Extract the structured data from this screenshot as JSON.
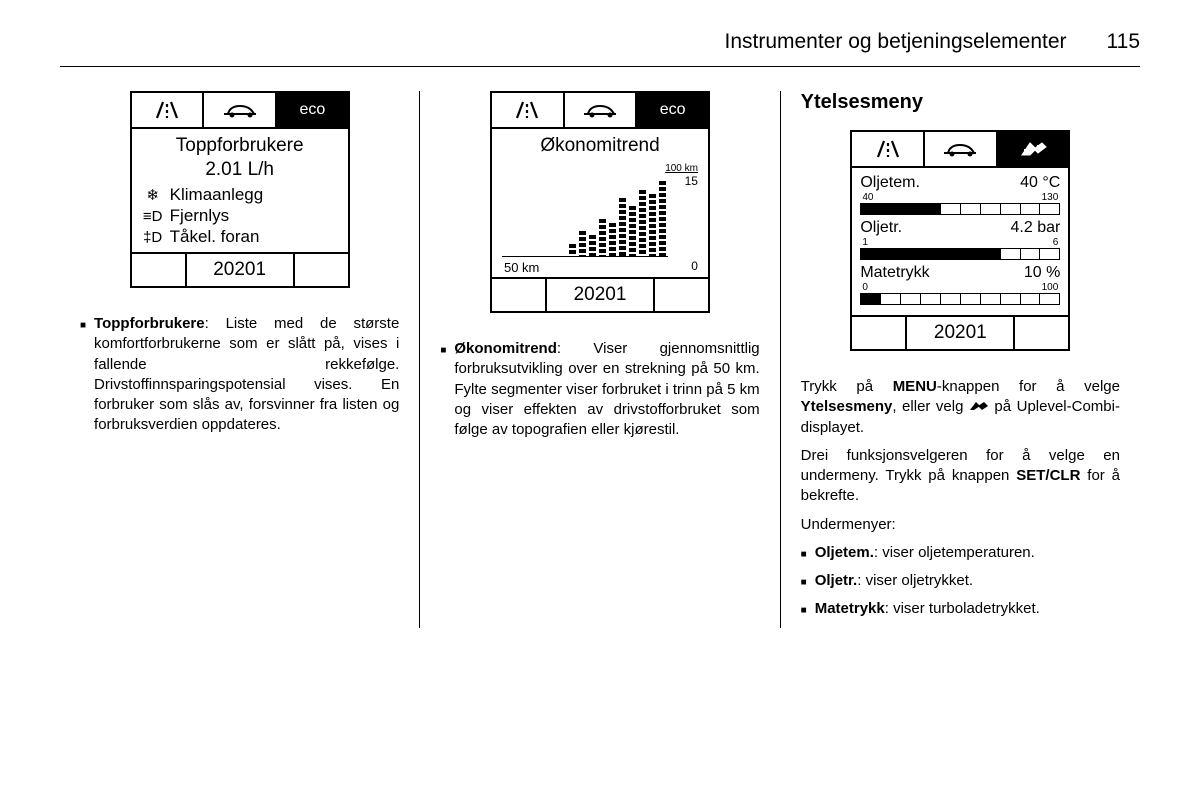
{
  "header": {
    "title": "Instrumenter og betjeningselementer",
    "page": "115"
  },
  "col1": {
    "display": {
      "tabs": {
        "eco_label": "eco"
      },
      "title": "Toppforbrukere",
      "value": "2.01 L/h",
      "consumers": [
        {
          "icon": "❄",
          "label": "Klimaanlegg"
        },
        {
          "icon": "≡D",
          "label": "Fjernlys"
        },
        {
          "icon": "‡D",
          "label": "Tåkel. foran"
        }
      ],
      "footer_value": "20201"
    },
    "bullet_label": "Toppforbrukere",
    "bullet_text": ": Liste med de største komfortforbrukerne som er slått på, vises i fallende rekkefølge. Drivstoffinnsparingspotensial vises. En forbruker som slås av, forsvinner fra listen og forbruksverdien oppdateres."
  },
  "col2": {
    "display": {
      "tabs": {
        "eco_label": "eco"
      },
      "title": "Økonomitrend",
      "chart": {
        "top_label": "100 km",
        "right_top": "15",
        "right_bottom": "0",
        "left_bottom": "50 km",
        "bar_heights_pct": [
          15,
          30,
          25,
          45,
          40,
          70,
          60,
          80,
          75,
          90
        ]
      },
      "footer_value": "20201"
    },
    "bullet_label": "Økonomitrend",
    "bullet_text": ": Viser gjennomsnittlig forbruksutvikling over en strekning på 50 km. Fylte segmenter viser forbruket i trinn på 5 km og viser effekten av drivstofforbruket som følge av topografien eller kjørestil."
  },
  "col3": {
    "section_title": "Ytelsesmeny",
    "display": {
      "rows": [
        {
          "label": "Oljetem.",
          "value": "40 °C",
          "scale_lo": "40",
          "scale_hi": "130",
          "filled": 4,
          "total": 10
        },
        {
          "label": "Oljetr.",
          "value": "4.2 bar",
          "scale_lo": "1",
          "scale_hi": "6",
          "filled": 7,
          "total": 10
        },
        {
          "label": "Matetrykk",
          "value": "10 %",
          "scale_lo": "0",
          "scale_hi": "100",
          "filled": 1,
          "total": 10
        }
      ],
      "footer_value": "20201"
    },
    "para1_a": "Trykk på ",
    "para1_b": "MENU",
    "para1_c": "-knappen for å velge ",
    "para1_d": "Ytelsesmeny",
    "para1_e": ", eller velg ",
    "para1_f": " på Uplevel-Combi-displayet.",
    "para2_a": "Drei funksjonsvelgeren for å velge en undermeny. Trykk på knappen ",
    "para2_b": "SET/CLR",
    "para2_c": " for å bekrefte.",
    "sub_label": "Undermenyer:",
    "subs": [
      {
        "label": "Oljetem.",
        "text": ": viser oljetemperaturen."
      },
      {
        "label": "Oljetr.",
        "text": ": viser oljetrykket."
      },
      {
        "label": "Matetrykk",
        "text": ": viser turboladetrykket."
      }
    ]
  }
}
